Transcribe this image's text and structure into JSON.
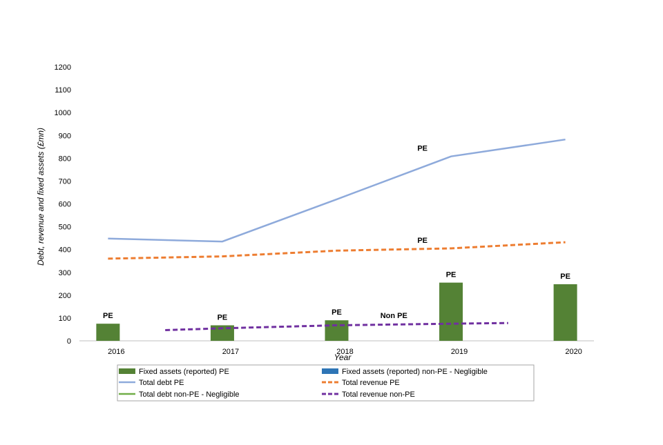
{
  "chart_data": {
    "type": "bar",
    "x": [
      2016,
      2017,
      2018,
      2019,
      2020
    ],
    "xlabel": "Year",
    "ylabel": "Debt, revenue and fixed assets (£mn)",
    "ylim": [
      0,
      1200
    ],
    "yticks": [
      0,
      100,
      200,
      300,
      400,
      500,
      600,
      700,
      800,
      900,
      1000,
      1100,
      1200
    ],
    "grid": false,
    "legend_position": "bottom",
    "series": [
      {
        "name": "Fixed assets (reported) PE",
        "kind": "bar",
        "color": "#548235",
        "x": [
          2016,
          2017,
          2018,
          2019,
          2020
        ],
        "values": [
          75,
          68,
          90,
          255,
          248
        ]
      },
      {
        "name": "Fixed assets (reported) non-PE - Negligible",
        "kind": "bar",
        "color": "#2e75b6",
        "x": [],
        "values": []
      },
      {
        "name": "Total debt PE",
        "kind": "line",
        "color": "#8eaadb",
        "dash": "solid",
        "x": [
          2016,
          2017,
          2018,
          2019,
          2020
        ],
        "values": [
          448,
          435,
          620,
          808,
          882
        ]
      },
      {
        "name": "Total revenue PE",
        "kind": "line",
        "color": "#ed7d31",
        "dash": "dashed",
        "x": [
          2016,
          2017,
          2018,
          2019,
          2020
        ],
        "values": [
          360,
          370,
          395,
          405,
          432
        ]
      },
      {
        "name": "Total debt non-PE - Negligible",
        "kind": "line",
        "color": "#70ad47",
        "dash": "solid",
        "x": [],
        "values": []
      },
      {
        "name": "Total revenue non-PE",
        "kind": "line",
        "color": "#7030a0",
        "dash": "dashed",
        "x": [
          2016.5,
          2017,
          2018,
          2019,
          2019.5
        ],
        "values": [
          47,
          55,
          68,
          75,
          78
        ]
      }
    ],
    "annotations": [
      {
        "text": "PE",
        "x": 2016,
        "y": 75
      },
      {
        "text": "PE",
        "x": 2017,
        "y": 68
      },
      {
        "text": "PE",
        "x": 2018,
        "y": 90
      },
      {
        "text": "PE",
        "x": 2019,
        "y": 255
      },
      {
        "text": "PE",
        "x": 2020,
        "y": 248
      },
      {
        "text": "PE",
        "x": 2018.75,
        "y": 808
      },
      {
        "text": "PE",
        "x": 2018.75,
        "y": 405
      },
      {
        "text": "Non PE",
        "x": 2018.5,
        "y": 75
      }
    ]
  }
}
